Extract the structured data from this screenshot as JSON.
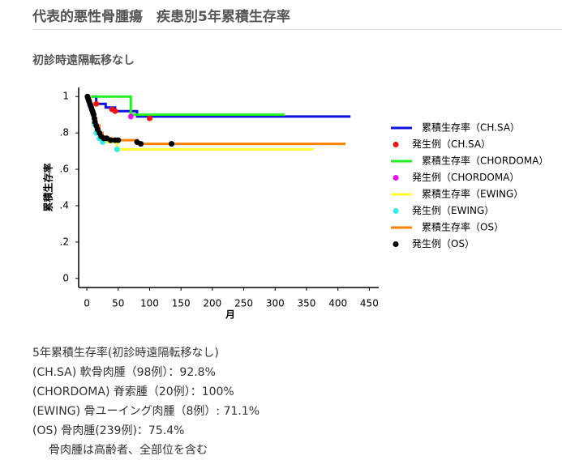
{
  "header": {
    "title": "代表的悪性骨腫瘍　疾患別5年累積生存率",
    "subtitle": "初診時遠隔転移なし"
  },
  "chart_data": {
    "type": "survival",
    "xlabel": "月",
    "ylabel": "累積生存率",
    "xlim": [
      -13,
      465
    ],
    "ylim": [
      -0.05,
      1.05
    ],
    "xticks": [
      0,
      50,
      100,
      150,
      200,
      250,
      300,
      350,
      400,
      450
    ],
    "yticks": [
      1,
      {
        "value": 0.8,
        "label": ".8"
      },
      {
        "value": 0.6,
        "label": ".6"
      },
      {
        "value": 0.4,
        "label": ".4"
      },
      {
        "value": 0.2,
        "label": ".2"
      },
      0
    ],
    "legend": "right",
    "series": [
      {
        "name": "累積生存率（CH.SA）",
        "color": "#1010e0",
        "kind": "step",
        "x": [
          0,
          15,
          30,
          45,
          80,
          420
        ],
        "values": [
          1,
          0.96,
          0.94,
          0.92,
          0.89,
          0.89
        ]
      },
      {
        "name": "発生例（CH.SA）",
        "color": "#ee1111",
        "kind": "points",
        "x": [
          15,
          40,
          45,
          100
        ],
        "values": [
          0.96,
          0.93,
          0.92,
          0.88
        ]
      },
      {
        "name": "累積生存率（CHORDOMA）",
        "color": "#22ee22",
        "kind": "step",
        "x": [
          0,
          70,
          315
        ],
        "values": [
          1,
          0.9,
          0.9
        ]
      },
      {
        "name": "発生例（CHORDOMA）",
        "color": "#ee11ee",
        "kind": "points",
        "x": [
          70
        ],
        "values": [
          0.89
        ]
      },
      {
        "name": "累積生存率（EWING）",
        "color": "#ffff33",
        "kind": "step",
        "x": [
          0,
          5,
          10,
          12,
          15,
          20,
          25,
          48,
          360
        ],
        "values": [
          1,
          0.95,
          0.9,
          0.85,
          0.8,
          0.77,
          0.75,
          0.71,
          0.71
        ]
      },
      {
        "name": "発生例（EWING）",
        "color": "#33eeee",
        "kind": "points",
        "x": [
          5,
          10,
          12,
          15,
          20,
          25,
          48
        ],
        "values": [
          0.95,
          0.9,
          0.85,
          0.8,
          0.77,
          0.75,
          0.71
        ]
      },
      {
        "name": "累積生存率（OS）",
        "color": "#ff8000",
        "kind": "step",
        "x": [
          0,
          2,
          5,
          8,
          10,
          12,
          15,
          20,
          25,
          30,
          40,
          80,
          412
        ],
        "values": [
          1,
          0.98,
          0.96,
          0.93,
          0.91,
          0.88,
          0.84,
          0.8,
          0.78,
          0.77,
          0.76,
          0.74,
          0.74
        ]
      },
      {
        "name": "発生例（OS）",
        "color": "#000000",
        "kind": "points",
        "x": [
          1,
          2,
          3,
          4,
          5,
          6,
          7,
          8,
          9,
          10,
          11,
          12,
          13,
          15,
          17,
          20,
          23,
          27,
          32,
          38,
          45,
          50,
          80,
          86,
          135
        ],
        "values": [
          1,
          0.99,
          0.98,
          0.97,
          0.96,
          0.95,
          0.94,
          0.93,
          0.92,
          0.91,
          0.9,
          0.88,
          0.86,
          0.84,
          0.82,
          0.8,
          0.78,
          0.77,
          0.77,
          0.76,
          0.76,
          0.76,
          0.75,
          0.74,
          0.74
        ]
      }
    ]
  },
  "notes": {
    "heading": "5年累積生存率(初診時遠隔転移なし)",
    "lines": [
      "(CH.SA) 軟骨肉腫（98例）：92.8%",
      "(CHORDOMA) 脊索腫（20例）：100%",
      "(EWING) 骨ユーイング肉腫（8例）: 71.1%",
      "(OS) 骨肉腫(239例)：75.4%"
    ],
    "footnote": "骨肉腫は高齢者、全部位を含む"
  }
}
